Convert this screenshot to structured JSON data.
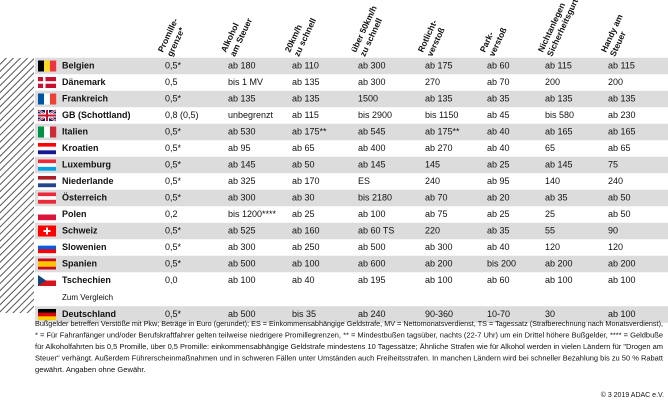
{
  "table": {
    "headers": [
      [
        "Promille-",
        "grenze*"
      ],
      [
        "Alkohol",
        "am Steuer"
      ],
      [
        "20km/h",
        "zu schnell"
      ],
      [
        "über 50km/h",
        "zu schnell"
      ],
      [
        "Rotlicht-",
        "verstoß"
      ],
      [
        "Park-",
        "verstoß"
      ],
      [
        "Nichtanlegen",
        "Sicherheitsgurt"
      ],
      [
        "Handy am",
        "Steuer"
      ]
    ],
    "rows": [
      [
        "Belgien",
        "0,5*",
        "ab 180",
        "ab 110",
        "ab 300",
        "ab 175",
        "ab 60",
        "ab 115",
        "ab 115"
      ],
      [
        "Dänemark",
        "0,5",
        "bis 1 MV",
        "ab 135",
        "ab 300",
        "270",
        "ab 70",
        "200",
        "200"
      ],
      [
        "Frankreich",
        "0,5*",
        "ab 135",
        "ab 135",
        "1500",
        "ab 135",
        "ab 35",
        "ab 135",
        "ab 135"
      ],
      [
        "GB (Schottland)",
        "0,8 (0,5)",
        "unbegrenzt",
        "ab 115",
        "bis 2900",
        "bis 1150",
        "ab 45",
        "bis 580",
        "ab 230"
      ],
      [
        "Italien",
        "0,5*",
        "ab 530",
        "ab 175**",
        "ab 545",
        "ab 175**",
        "ab 40",
        "ab 165",
        "ab 165"
      ],
      [
        "Kroatien",
        "0,5*",
        "ab 95",
        "ab 65",
        "ab 400",
        "ab 270",
        "ab 40",
        "65",
        "ab 65"
      ],
      [
        "Luxemburg",
        "0,5*",
        "ab 145",
        "ab 50",
        "ab 145",
        "145",
        "ab 25",
        "ab 145",
        "75"
      ],
      [
        "Niederlande",
        "0,5*",
        "ab 325",
        "ab 170",
        "ES",
        "240",
        "ab 95",
        "140",
        "240"
      ],
      [
        "Österreich",
        "0,5*",
        "ab 300",
        "ab 30",
        "bis 2180",
        "ab 70",
        "ab 20",
        "ab 35",
        "ab 50"
      ],
      [
        "Polen",
        "0,2",
        "bis 1200****",
        "ab 25",
        "ab 100",
        "ab 75",
        "ab 25",
        "25",
        "ab 50"
      ],
      [
        "Schweiz",
        "0,5*",
        "ab 525",
        "ab 160",
        "ab 60 TS",
        "220",
        "ab 35",
        "55",
        "90"
      ],
      [
        "Slowenien",
        "0,5*",
        "ab 300",
        "ab 250",
        "ab 500",
        "ab 300",
        "ab 40",
        "120",
        "120"
      ],
      [
        "Spanien",
        "0,5*",
        "ab 500",
        "ab 100",
        "ab 600",
        "ab 200",
        "bis 200",
        "ab 200",
        "ab 200"
      ],
      [
        "Tschechien",
        "0,0",
        "ab 100",
        "ab 40",
        "ab 195",
        "ab 100",
        "ab 60",
        "ab 100",
        "ab 100"
      ]
    ],
    "comparison_label": "Zum Vergleich",
    "comparison_row": [
      "Deutschland",
      "0,5*",
      "ab 500",
      "bis 35",
      "ab 240",
      "90-360",
      "10-70",
      "30",
      "ab 100"
    ]
  },
  "footnote": [
    "Bußgelder betreffen Verstöße mit Pkw; Beträge in Euro (gerundet); ES = Einkommensabhängige Geldstrafe, MV = Nettomonatsverdienst, TS = Tagessatz (Strafberechnung nach Monatsverdienst),",
    "* = Für Fahranfänger und/oder Berufskraftfahrer gelten teilweise niedrigere Promillegrenzen, ** = Mindestbußen tagsüber, nachts (22-7 Uhr) um ein Drittel höhere Bußgelder, **** = Geldbuße",
    "für Alkoholfahrten bis 0,5 Promille, über 0,5 Promille: einkommensabhängige Geldstrafe mindestens 10 Tagessätze; Ähnliche Strafen wie für Alkohol werden in vielen Ländern für \"Drogen am",
    "Steuer\" verhängt. Außerdem Führerscheinmaßnahmen und in schweren Fällen unter Umständen auch Freiheitsstrafen. In manchen Ländern wird bei schneller Bezahlung bis zu 50 % Rabatt",
    "gewährt. Angaben ohne Gewähr."
  ],
  "copyright": "© 3 2019 ADAC e.V."
}
